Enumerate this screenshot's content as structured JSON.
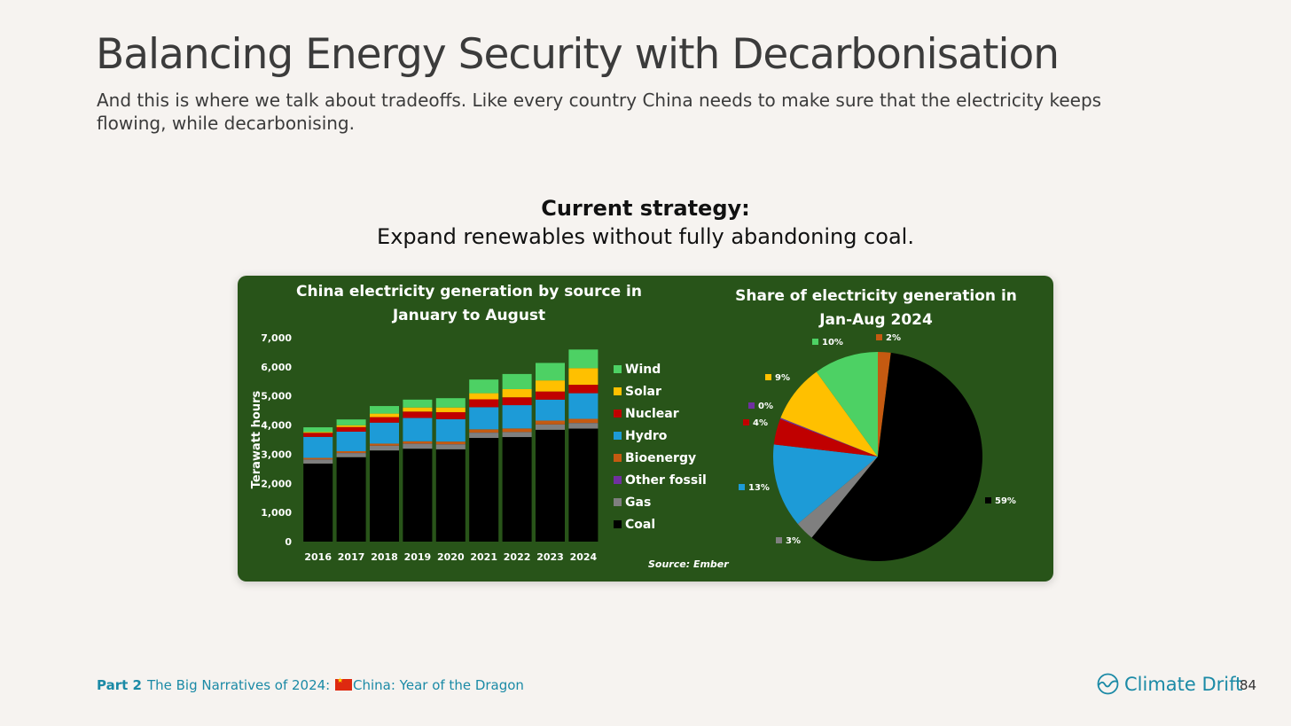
{
  "slide": {
    "title": "Balancing Energy Security with Decarbonisation",
    "subtitle": "And this is where we talk about tradeoffs. Like every country China needs to make sure that the electricity keeps flowing, while decarbonising.",
    "strategy_heading": "Current strategy:",
    "strategy_body": "Expand renewables without fully abandoning coal.",
    "source": "Source: Ember"
  },
  "footer": {
    "part_label": "Part 2",
    "part_text_before_flag": "The Big Narratives of 2024:",
    "part_text_after_flag": "China: Year of the Dragon",
    "brand": "Climate Drift",
    "page_number": "84"
  },
  "colors": {
    "Coal": "#000000",
    "Gas": "#7f7f7f",
    "Other fossil": "#7030a0",
    "Bioenergy": "#c55a11",
    "Hydro": "#1d9bd7",
    "Nuclear": "#c00000",
    "Solar": "#ffc000",
    "Wind": "#4dd164"
  },
  "chart_data": [
    {
      "type": "bar",
      "stacked": true,
      "title": "China electricity generation by source in January to August",
      "ylabel": "Terawatt hours",
      "ylim": [
        0,
        7000
      ],
      "yticks": [
        "0",
        "1,000",
        "2,000",
        "3,000",
        "4,000",
        "5,000",
        "6,000",
        "7,000"
      ],
      "categories": [
        "2016",
        "2017",
        "2018",
        "2019",
        "2020",
        "2021",
        "2022",
        "2023",
        "2024"
      ],
      "legend_position": "right",
      "series": [
        {
          "name": "Coal",
          "values": [
            2680,
            2900,
            3130,
            3190,
            3170,
            3560,
            3590,
            3840,
            3880
          ]
        },
        {
          "name": "Gas",
          "values": [
            140,
            140,
            160,
            170,
            170,
            180,
            170,
            180,
            190
          ]
        },
        {
          "name": "Other fossil",
          "values": [
            5,
            5,
            5,
            5,
            5,
            5,
            5,
            5,
            5
          ]
        },
        {
          "name": "Bioenergy",
          "values": [
            50,
            60,
            70,
            80,
            90,
            110,
            120,
            130,
            140
          ]
        },
        {
          "name": "Hydro",
          "values": [
            720,
            670,
            720,
            800,
            770,
            760,
            800,
            720,
            880
          ]
        },
        {
          "name": "Nuclear",
          "values": [
            140,
            160,
            190,
            220,
            240,
            270,
            270,
            280,
            290
          ]
        },
        {
          "name": "Solar",
          "values": [
            30,
            60,
            120,
            140,
            160,
            210,
            280,
            380,
            570
          ]
        },
        {
          "name": "Wind",
          "values": [
            160,
            200,
            260,
            270,
            320,
            470,
            520,
            600,
            640
          ]
        }
      ]
    },
    {
      "type": "pie",
      "title": "Share of electricity generation in Jan-Aug 2024",
      "slices": [
        {
          "name": "Bioenergy",
          "value": 2,
          "label": "2%"
        },
        {
          "name": "Coal",
          "value": 59,
          "label": "59%"
        },
        {
          "name": "Gas",
          "value": 3,
          "label": "3%"
        },
        {
          "name": "Hydro",
          "value": 13,
          "label": "13%"
        },
        {
          "name": "Nuclear",
          "value": 4,
          "label": "4%"
        },
        {
          "name": "Other fossil",
          "value": 0.2,
          "label": "0%"
        },
        {
          "name": "Solar",
          "value": 9,
          "label": "9%"
        },
        {
          "name": "Wind",
          "value": 10,
          "label": "10%"
        }
      ]
    }
  ]
}
